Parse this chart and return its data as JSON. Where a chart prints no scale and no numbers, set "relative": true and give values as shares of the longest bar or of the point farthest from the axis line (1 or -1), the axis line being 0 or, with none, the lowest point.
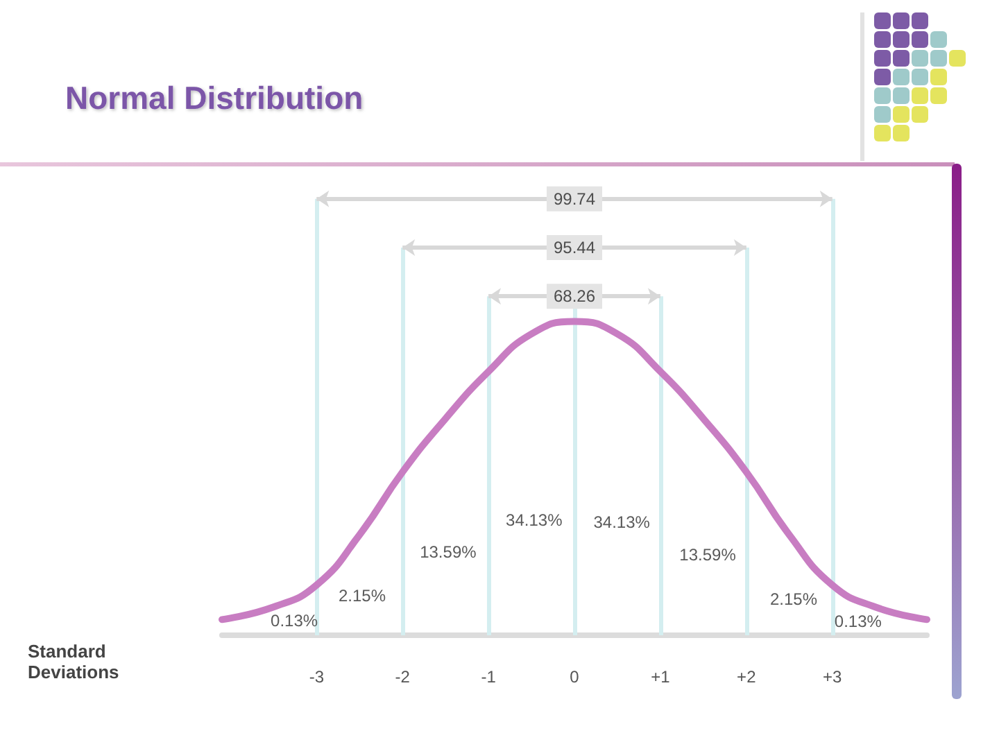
{
  "chart_data": {
    "type": "line",
    "title": "Normal Distribution",
    "relative": true,
    "tick_labels": "x",
    "xlim": [
      -4.1,
      4.1
    ],
    "xticks": [
      -3,
      -2,
      -1,
      0,
      {
        "value": 1,
        "label": "+1"
      },
      {
        "value": 2,
        "label": "+2"
      },
      {
        "value": 3,
        "label": "+3"
      }
    ],
    "x": [
      -4.1,
      -3.5,
      -3,
      -2.5,
      -2,
      -1.5,
      -1,
      -0.5,
      0,
      0.5,
      1,
      1.5,
      2,
      2.5,
      3,
      3.5,
      4.1
    ],
    "values": [
      0.05,
      0.09,
      0.16,
      0.32,
      0.52,
      0.69,
      0.84,
      0.96,
      1,
      0.96,
      0.84,
      0.69,
      0.52,
      0.32,
      0.16,
      0.09,
      0.05
    ],
    "color": "#c87dc2",
    "ref_lines": [
      {
        "axis": "x",
        "value": -3,
        "color": "#d4eef0"
      },
      {
        "axis": "x",
        "value": -2,
        "color": "#d4eef0"
      },
      {
        "axis": "x",
        "value": -1,
        "color": "#d4eef0"
      },
      {
        "axis": "x",
        "value": 0,
        "color": "#d4eef0"
      },
      {
        "axis": "x",
        "value": 1,
        "color": "#d4eef0"
      },
      {
        "axis": "x",
        "value": 2,
        "color": "#d4eef0"
      },
      {
        "axis": "x",
        "value": 3,
        "color": "#d4eef0"
      }
    ],
    "annotations": [
      "99.74",
      "95.44",
      "68.26",
      "0.13%",
      "2.15%",
      "13.59%",
      "34.13%",
      "34.13%",
      "13.59%",
      "2.15%",
      "0.13%",
      "Standard Deviations"
    ]
  }
}
